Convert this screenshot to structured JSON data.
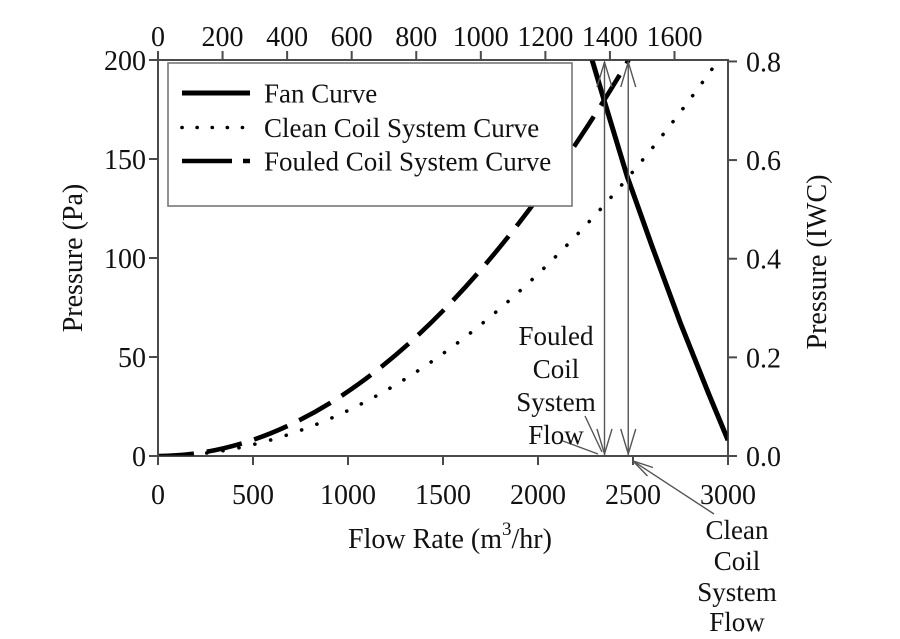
{
  "colors": {
    "curve": "#000000",
    "axis_frame": "#4a4a4a",
    "annotation_line": "#555555",
    "legend_border": "#777777",
    "text": "#111111",
    "background": "#ffffff"
  },
  "chart_data": {
    "type": "line",
    "title": "",
    "x_axis_bottom": {
      "label": "Flow Rate (m³/hr)",
      "label_parts": {
        "base": "Flow Rate (m",
        "sup": "3",
        "tail": "/hr)"
      },
      "min": 0,
      "max": 3000,
      "ticks": [
        "0",
        "500",
        "1000",
        "1500",
        "2000",
        "2500",
        "3000"
      ]
    },
    "x_axis_top": {
      "label": "",
      "units_note": "same flow axis in CFM",
      "min": 0,
      "max": 1766,
      "ticks": [
        "0",
        "200",
        "400",
        "600",
        "800",
        "1000",
        "1200",
        "1400",
        "1600"
      ]
    },
    "y_axis_left": {
      "label": "Pressure (Pa)",
      "min": 0,
      "max": 200,
      "ticks": [
        "0",
        "50",
        "100",
        "150",
        "200"
      ]
    },
    "y_axis_right": {
      "label": "Pressure (IWC)",
      "min": 0.0,
      "max": 0.8,
      "ticks": [
        "0.0",
        "0.2",
        "0.4",
        "0.6",
        "0.8"
      ]
    },
    "series": [
      {
        "name": "Fan Curve",
        "line_style": "solid",
        "points": [
          [
            2285,
            200
          ],
          [
            2350,
            179
          ],
          [
            2470,
            141
          ],
          [
            2600,
            106
          ],
          [
            2750,
            67
          ],
          [
            2900,
            31
          ],
          [
            3000,
            8
          ]
        ]
      },
      {
        "name": "Clean Coil System Curve",
        "line_style": "dotted",
        "curve": "quadratic-from-origin",
        "x_end": 2950,
        "y_end": 200,
        "points": [
          [
            0,
            0
          ],
          [
            500,
            6
          ],
          [
            1000,
            23
          ],
          [
            1500,
            52
          ],
          [
            2000,
            92
          ],
          [
            2500,
            145
          ],
          [
            2950,
            200
          ]
        ]
      },
      {
        "name": "Fouled Coil System Curve",
        "line_style": "long-dash",
        "curve": "quadratic-from-origin",
        "x_end": 2477,
        "y_end": 200,
        "points": [
          [
            0,
            0
          ],
          [
            500,
            8
          ],
          [
            1000,
            33
          ],
          [
            1500,
            73
          ],
          [
            2000,
            130
          ],
          [
            2350,
            180
          ],
          [
            2477,
            200
          ]
        ]
      }
    ],
    "legend": {
      "position": "top-left"
    },
    "annotations": [
      {
        "id": "fouled-flow",
        "lines": [
          "Fouled",
          "Coil",
          "System",
          "Flow"
        ],
        "arrow_x": 2350
      },
      {
        "id": "clean-flow",
        "lines": [
          "Clean",
          "Coil",
          "System",
          "Flow"
        ],
        "arrow_x": 2475
      }
    ],
    "operating_points": {
      "fouled": {
        "flow_m3hr": 2350,
        "pressure_pa": 179
      },
      "clean": {
        "flow_m3hr": 2475,
        "pressure_pa": 141
      }
    }
  }
}
